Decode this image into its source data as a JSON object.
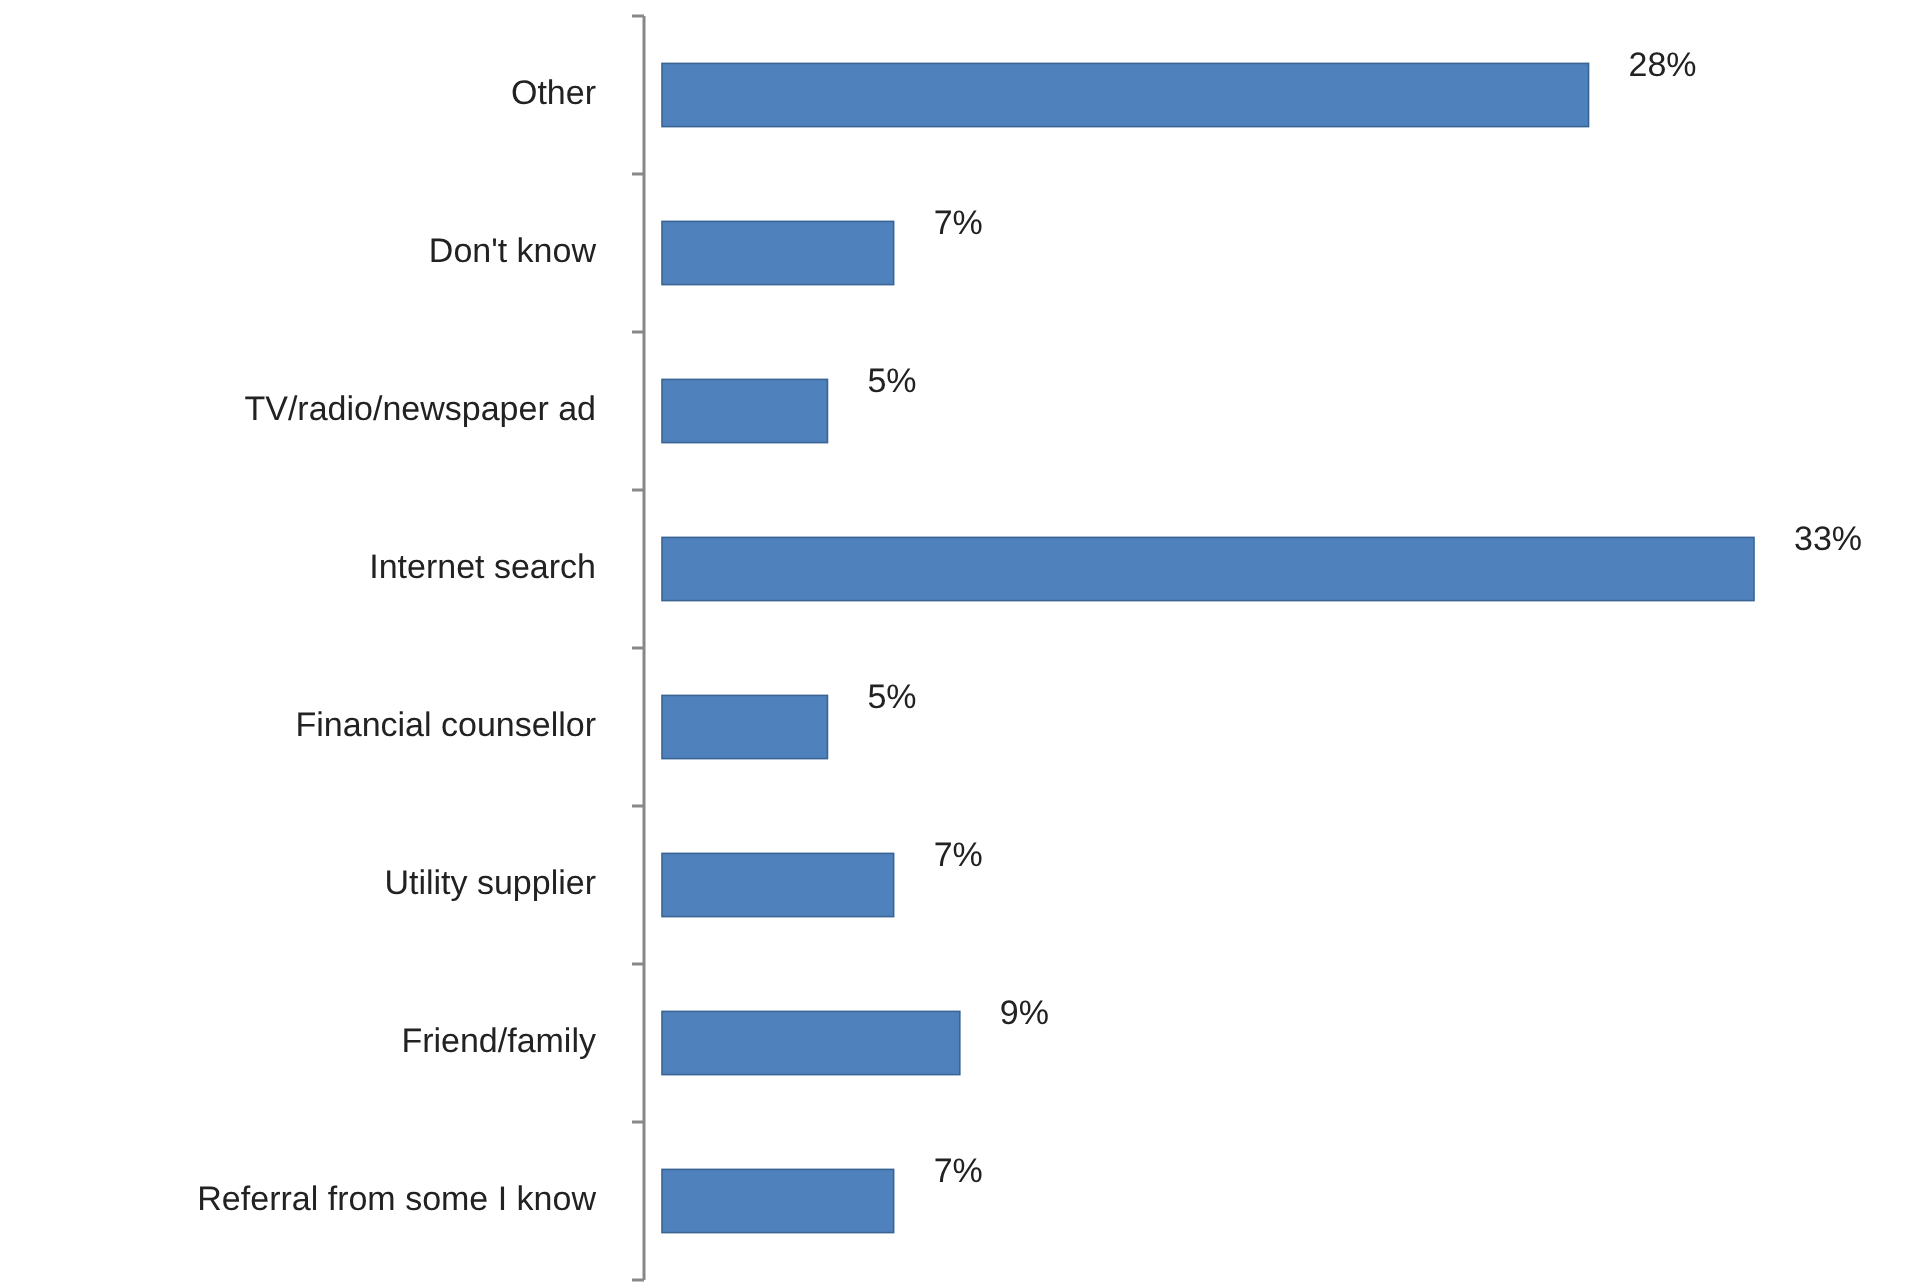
{
  "chart_data": {
    "type": "bar",
    "orientation": "horizontal",
    "categories": [
      "Other",
      "Don't know",
      "TV/radio/newspaper ad",
      "Internet search",
      "Financial counsellor",
      "Utility supplier",
      "Friend/family",
      "Referral from some I know"
    ],
    "values": [
      28,
      7,
      5,
      33,
      5,
      7,
      9,
      7
    ],
    "value_labels": [
      "28%",
      "7%",
      "5%",
      "33%",
      "5%",
      "7%",
      "9%",
      "7%"
    ],
    "color": "#4f81bd"
  }
}
